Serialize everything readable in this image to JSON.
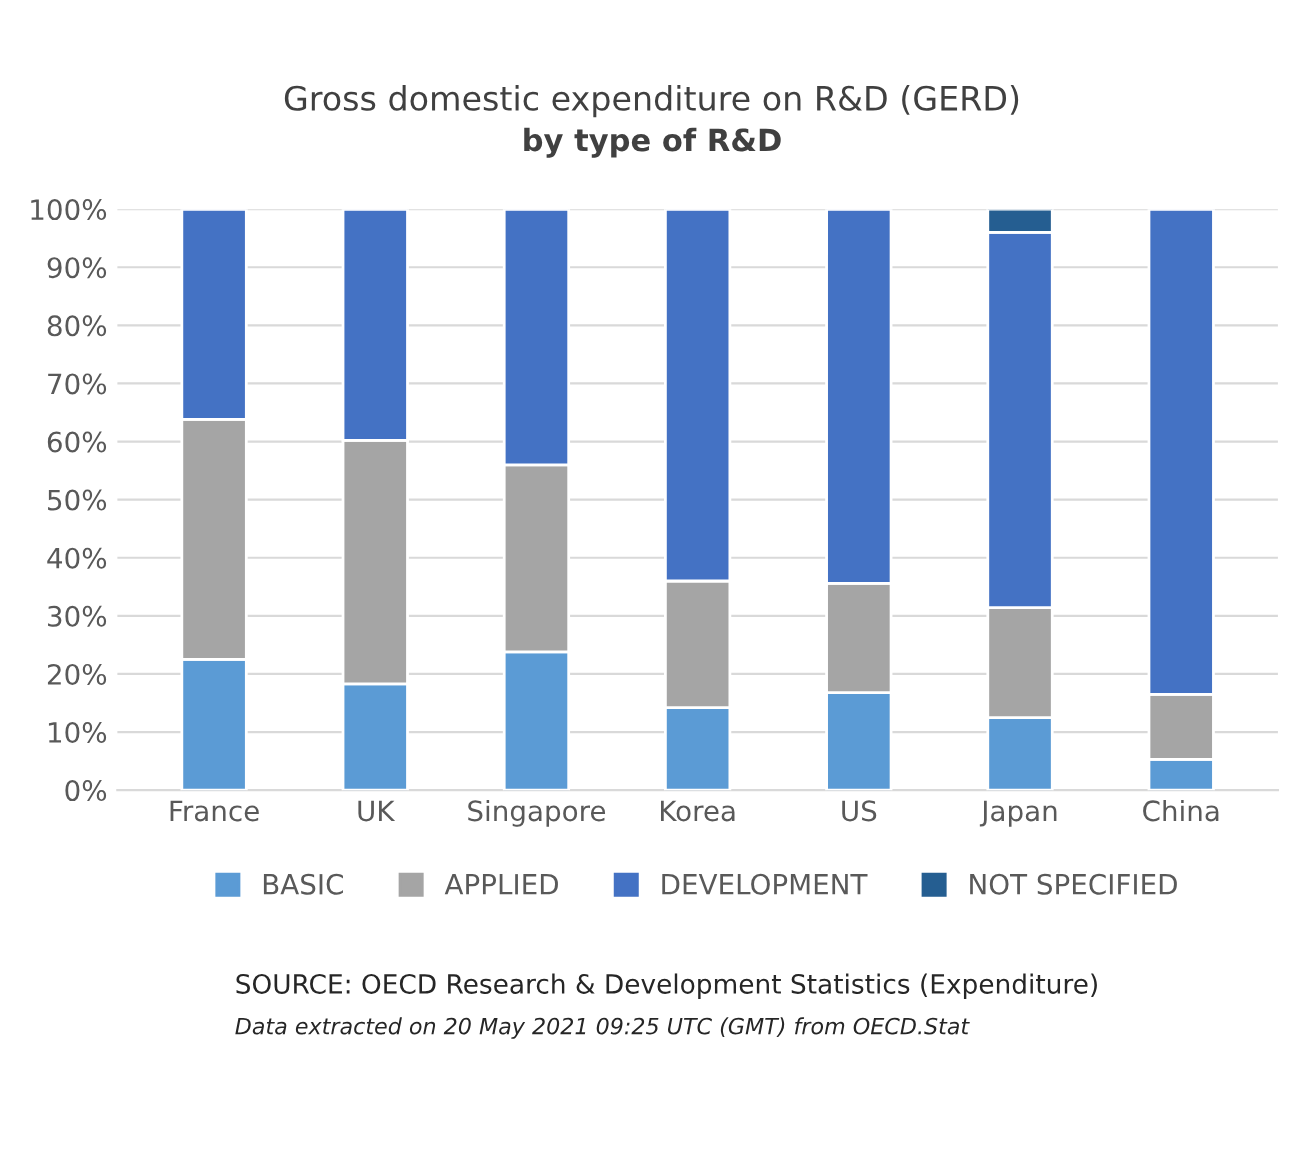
{
  "chart_data": {
    "type": "bar",
    "stacked": true,
    "title": "Gross domestic expenditure on R&D (GERD)",
    "subtitle": "by type of R&D",
    "categories": [
      "France",
      "UK",
      "Singapore",
      "Korea",
      "US",
      "Japan",
      "China"
    ],
    "series": [
      {
        "name": "BASIC",
        "color": "#5b9bd5",
        "values": [
          22.5,
          18.3,
          23.8,
          14.2,
          16.8,
          12.5,
          5.3
        ]
      },
      {
        "name": "APPLIED",
        "color": "#a5a5a5",
        "values": [
          41.3,
          41.9,
          32.2,
          21.8,
          18.8,
          18.9,
          11.2
        ]
      },
      {
        "name": "DEVELOPMENT",
        "color": "#4472c4",
        "values": [
          36.2,
          39.8,
          44.0,
          64.0,
          64.4,
          64.6,
          83.5
        ]
      },
      {
        "name": "NOT SPECIFIED",
        "color": "#255e91",
        "values": [
          null,
          null,
          null,
          null,
          null,
          4.0,
          null
        ]
      }
    ],
    "ylim": [
      0,
      100
    ],
    "yticks": [
      {
        "value": 0,
        "label": "0%"
      },
      {
        "value": 10,
        "label": "10%"
      },
      {
        "value": 20,
        "label": "20%"
      },
      {
        "value": 30,
        "label": "30%"
      },
      {
        "value": 40,
        "label": "40%"
      },
      {
        "value": 50,
        "label": "50%"
      },
      {
        "value": 60,
        "label": "60%"
      },
      {
        "value": 70,
        "label": "70%"
      },
      {
        "value": 80,
        "label": "80%"
      },
      {
        "value": 90,
        "label": "90%"
      },
      {
        "value": 100,
        "label": "100%"
      }
    ],
    "grid": "y",
    "legend": "bottom",
    "annotations": [
      "SOURCE: OECD Research & Development Statistics (Expenditure)",
      "Data extracted on 20 May 2021 09:25 UTC (GMT) from OECD.Stat"
    ]
  }
}
